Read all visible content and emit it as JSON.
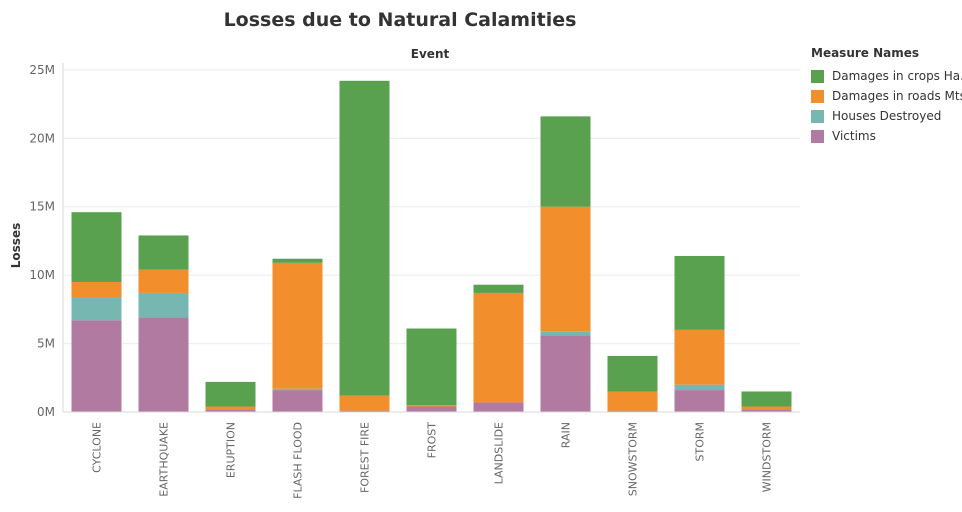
{
  "chart_data": {
    "type": "bar",
    "stacked": true,
    "title": "Losses due to Natural Calamities",
    "column_header": "Event",
    "ylabel": "Losses",
    "xlabel": "",
    "ylim": [
      0,
      25500000
    ],
    "yticks": [
      0,
      5000000,
      10000000,
      15000000,
      20000000,
      25000000
    ],
    "ytick_labels": [
      "0M",
      "5M",
      "10M",
      "15M",
      "20M",
      "25M"
    ],
    "grid": true,
    "legend": {
      "title": "Measure Names",
      "position": "right"
    },
    "categories": [
      "CYCLONE",
      "EARTHQUAKE",
      "ERUPTION",
      "FLASH FLOOD",
      "FOREST FIRE",
      "FROST",
      "LANDSLIDE",
      "RAIN",
      "SNOWSTORM",
      "STORM",
      "WINDSTORM"
    ],
    "series": [
      {
        "name": "Victims",
        "color": "#b07aa1",
        "values": [
          6700000,
          6900000,
          200000,
          1600000,
          100000,
          400000,
          700000,
          5600000,
          100000,
          1600000,
          200000
        ]
      },
      {
        "name": "Houses Destroyed",
        "color": "#76b7b2",
        "values": [
          1700000,
          1800000,
          0,
          100000,
          0,
          0,
          0,
          300000,
          0,
          400000,
          0
        ]
      },
      {
        "name": "Damages in roads Mts",
        "color": "#f28e2b",
        "values": [
          1100000,
          1700000,
          200000,
          9200000,
          1100000,
          100000,
          8000000,
          9100000,
          1400000,
          4000000,
          200000
        ]
      },
      {
        "name": "Damages in crops Ha.",
        "color": "#59a14f",
        "values": [
          5100000,
          2500000,
          1800000,
          300000,
          23000000,
          5600000,
          600000,
          6600000,
          2600000,
          5400000,
          1100000
        ]
      }
    ]
  },
  "legend_order": [
    "Damages in crops Ha.",
    "Damages in roads Mts",
    "Houses Destroyed",
    "Victims"
  ]
}
